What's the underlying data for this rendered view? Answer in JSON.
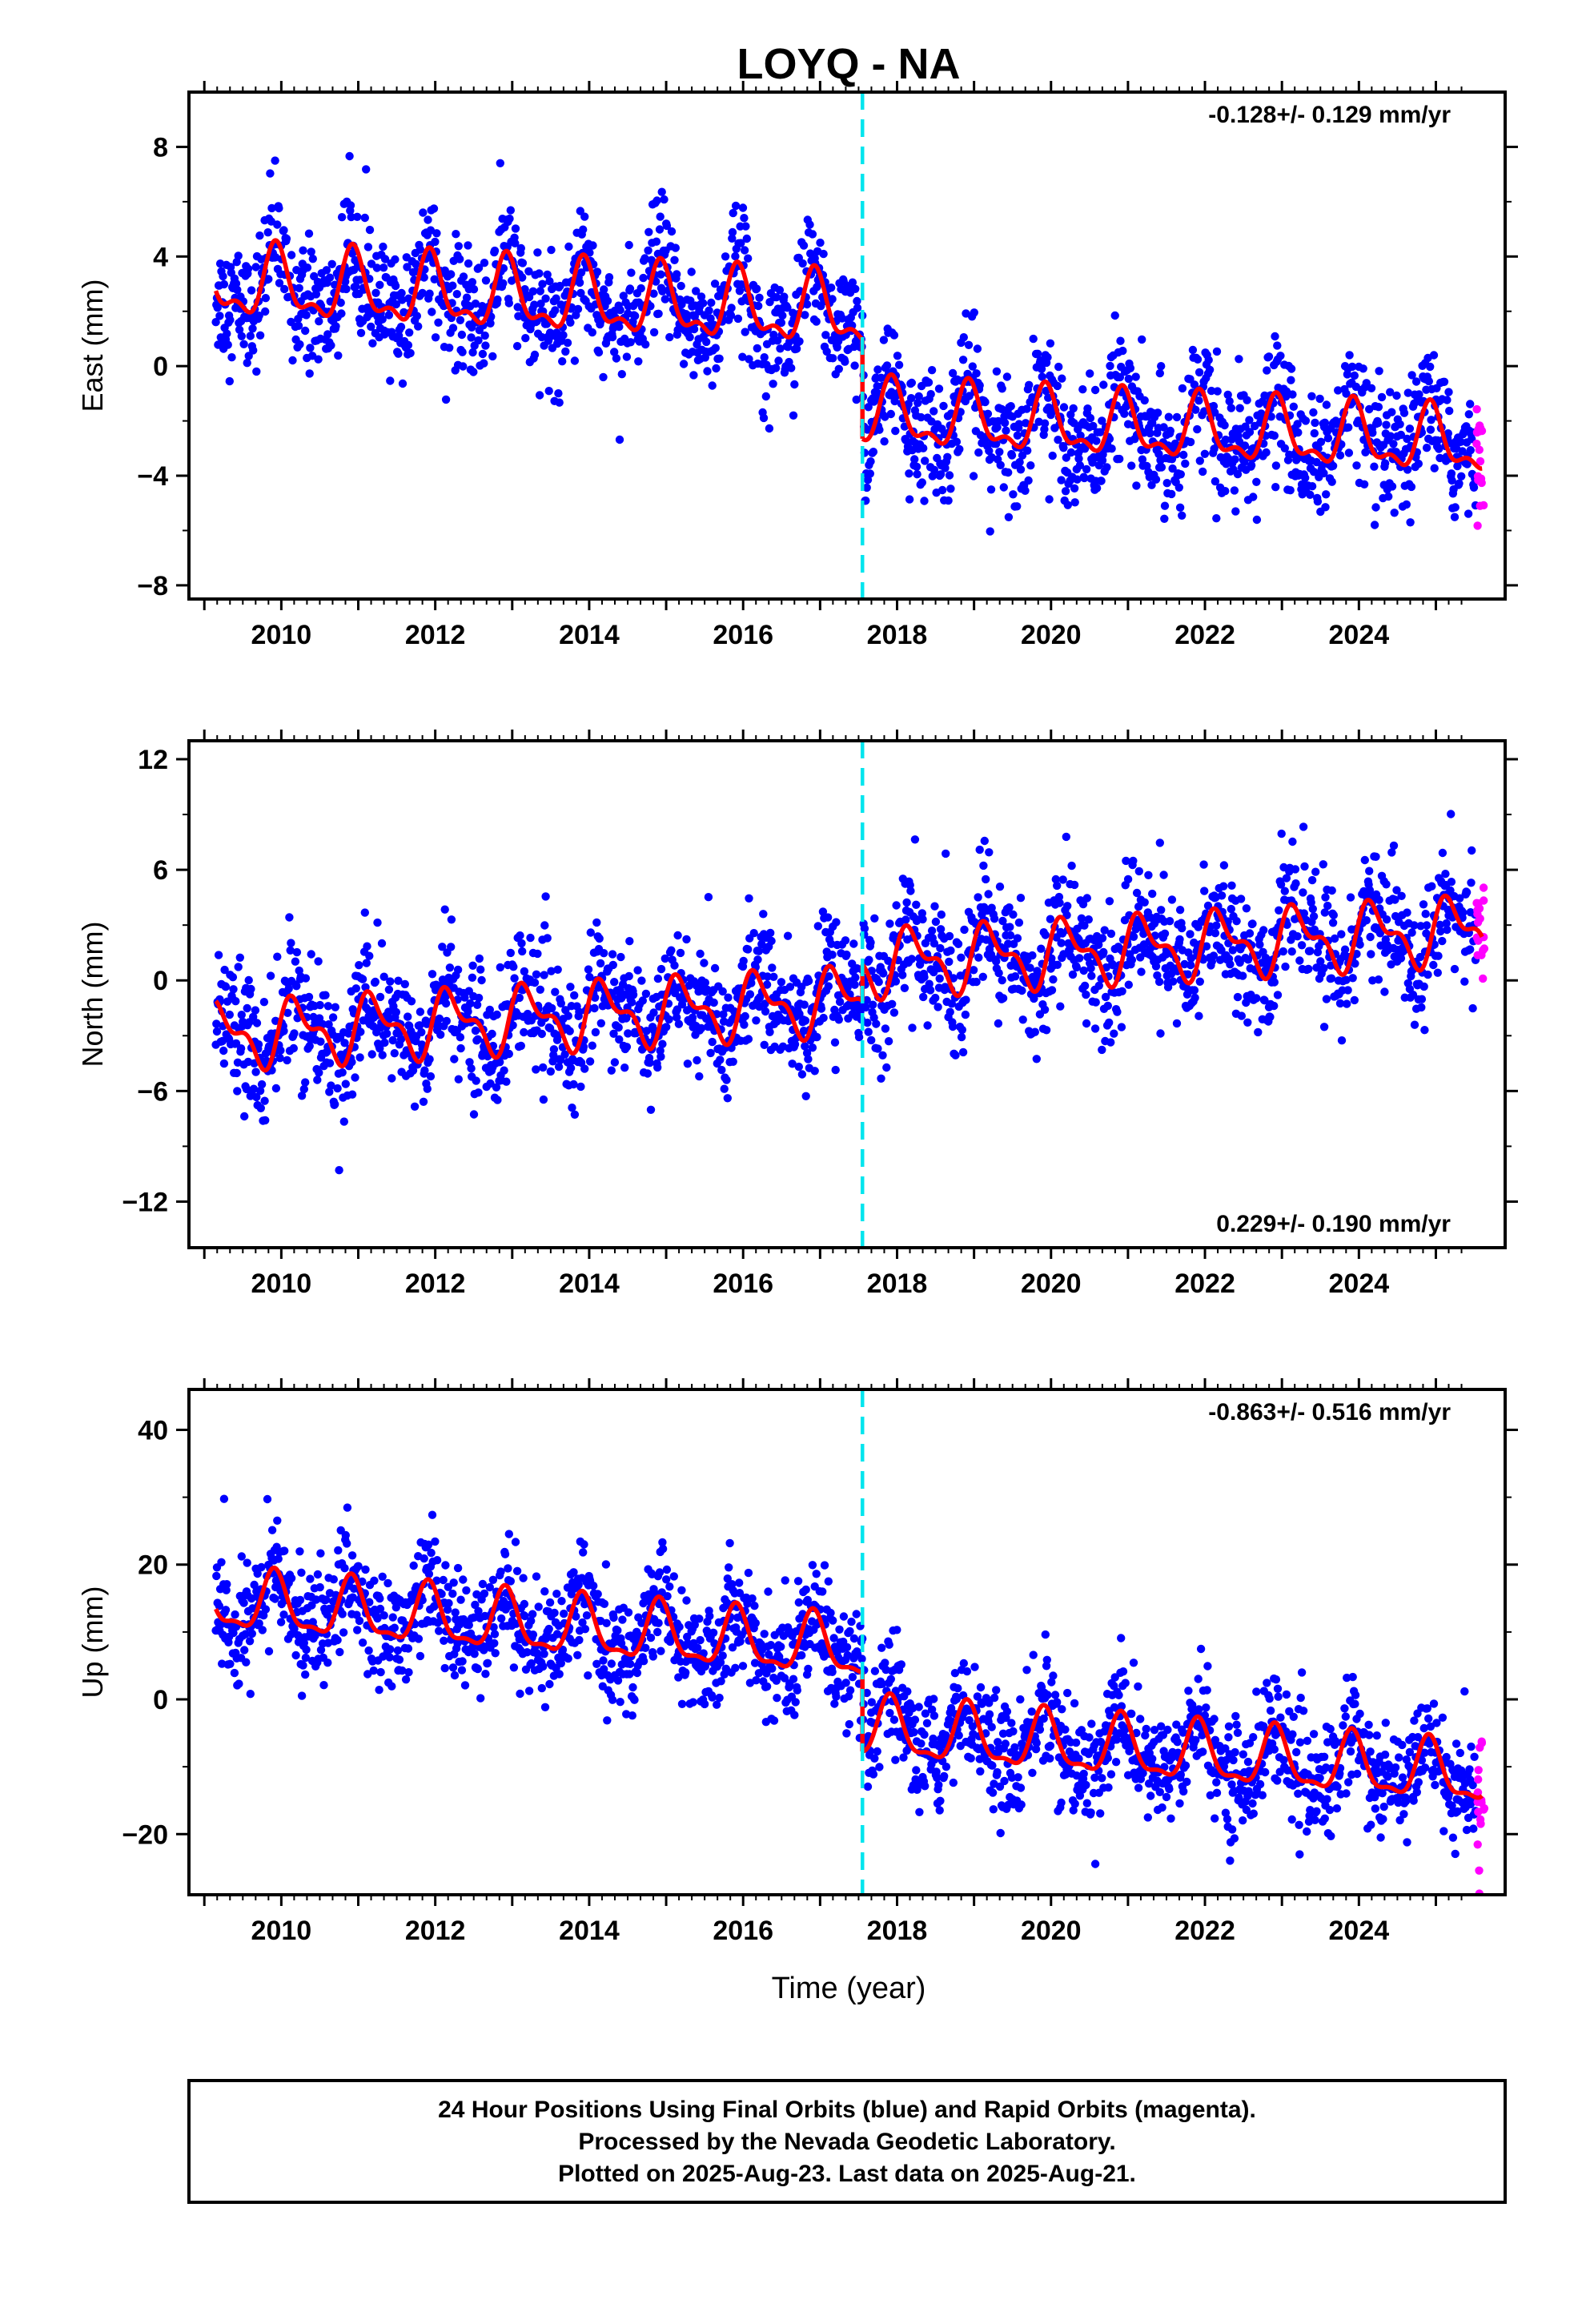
{
  "title": "LOYQ - NA",
  "xlabel": "Time (year)",
  "footer": {
    "line1": "24 Hour Positions Using Final Orbits (blue) and Rapid Orbits (magenta).",
    "line2": "Processed by the Nevada Geodetic Laboratory.",
    "line3": "Plotted on 2025-Aug-23. Last data on 2025-Aug-21."
  },
  "colors": {
    "final": "#0000ff",
    "rapid": "#ff00ff",
    "model": "#ff0000",
    "offset": "#00e5ee"
  },
  "chart_data": [
    {
      "type": "scatter",
      "ylabel": "East (mm)",
      "rate_label": "-0.128+/- 0.129 mm/yr",
      "rate_position": "top-right",
      "xlim": [
        2008.8,
        2025.9
      ],
      "ylim": [
        -8.5,
        10
      ],
      "xticks": [
        2010,
        2012,
        2014,
        2016,
        2018,
        2020,
        2022,
        2024
      ],
      "yticks": [
        -8,
        -4,
        0,
        4,
        8
      ],
      "ytick_labels": [
        "−8",
        "−4",
        "0",
        "4",
        "8"
      ],
      "offset_epoch": 2017.55,
      "model": {
        "pre": {
          "start": 2009.15,
          "end": 2017.55,
          "base_start": 3.0,
          "trend": -0.13,
          "amp1": 1.15,
          "amp2": 0.55,
          "phase1": 1.95,
          "phase2": 2.6
        },
        "post": {
          "start": 2017.55,
          "end": 2025.6,
          "base_start": -1.8,
          "trend": -0.13,
          "amp1": 1.05,
          "amp2": 0.5,
          "phase1": 1.95,
          "phase2": 2.6
        }
      },
      "scatter_sd": 1.1,
      "series": [
        {
          "name": "Final Orbits (blue)",
          "x_range": [
            2009.15,
            2025.52
          ]
        },
        {
          "name": "Rapid Orbits (magenta)",
          "x_range": [
            2025.53,
            2025.63
          ]
        }
      ]
    },
    {
      "type": "scatter",
      "ylabel": "North (mm)",
      "rate_label": "0.229+/- 0.190 mm/yr",
      "rate_position": "bottom-right",
      "xlim": [
        2008.8,
        2025.9
      ],
      "ylim": [
        -14.5,
        13
      ],
      "xticks": [
        2010,
        2012,
        2014,
        2016,
        2018,
        2020,
        2022,
        2024
      ],
      "yticks": [
        -12,
        -6,
        0,
        6,
        12
      ],
      "ytick_labels": [
        "−12",
        "−6",
        "0",
        "6",
        "12"
      ],
      "offset_epoch": 2017.55,
      "model": {
        "pre": {
          "start": 2009.15,
          "end": 2017.55,
          "base_start": -3.0,
          "trend": 0.23,
          "amp1": 1.5,
          "amp2": 0.8,
          "phase1": 0.25,
          "phase2": 0.6
        },
        "post": {
          "start": 2017.55,
          "end": 2025.6,
          "base_start": 0.9,
          "trend": 0.23,
          "amp1": 1.5,
          "amp2": 0.8,
          "phase1": 0.25,
          "phase2": 0.6
        }
      },
      "scatter_sd": 1.7,
      "series": [
        {
          "name": "Final Orbits (blue)",
          "x_range": [
            2009.15,
            2025.52
          ]
        },
        {
          "name": "Rapid Orbits (magenta)",
          "x_range": [
            2025.53,
            2025.63
          ]
        }
      ]
    },
    {
      "type": "scatter",
      "ylabel": "Up (mm)",
      "rate_label": "-0.863+/- 0.516 mm/yr",
      "rate_position": "top-right",
      "xlim": [
        2008.8,
        2025.9
      ],
      "ylim": [
        -29,
        46
      ],
      "xticks": [
        2010,
        2012,
        2014,
        2016,
        2018,
        2020,
        2022,
        2024
      ],
      "yticks": [
        -20,
        0,
        20,
        40
      ],
      "ytick_labels": [
        "−20",
        "0",
        "20",
        "40"
      ],
      "offset_epoch": 2017.55,
      "model": {
        "pre": {
          "start": 2009.15,
          "end": 2017.55,
          "base_start": 14.5,
          "trend": -0.86,
          "amp1": 4.2,
          "amp2": 1.5,
          "phase1": 2.1,
          "phase2": 2.8
        },
        "post": {
          "start": 2017.55,
          "end": 2025.6,
          "base_start": -4.5,
          "trend": -0.86,
          "amp1": 4.2,
          "amp2": 1.5,
          "phase1": 2.1,
          "phase2": 2.8
        }
      },
      "scatter_sd": 4.2,
      "series": [
        {
          "name": "Final Orbits (blue)",
          "x_range": [
            2009.15,
            2025.52
          ]
        },
        {
          "name": "Rapid Orbits (magenta)",
          "x_range": [
            2025.53,
            2025.63
          ]
        }
      ]
    }
  ]
}
